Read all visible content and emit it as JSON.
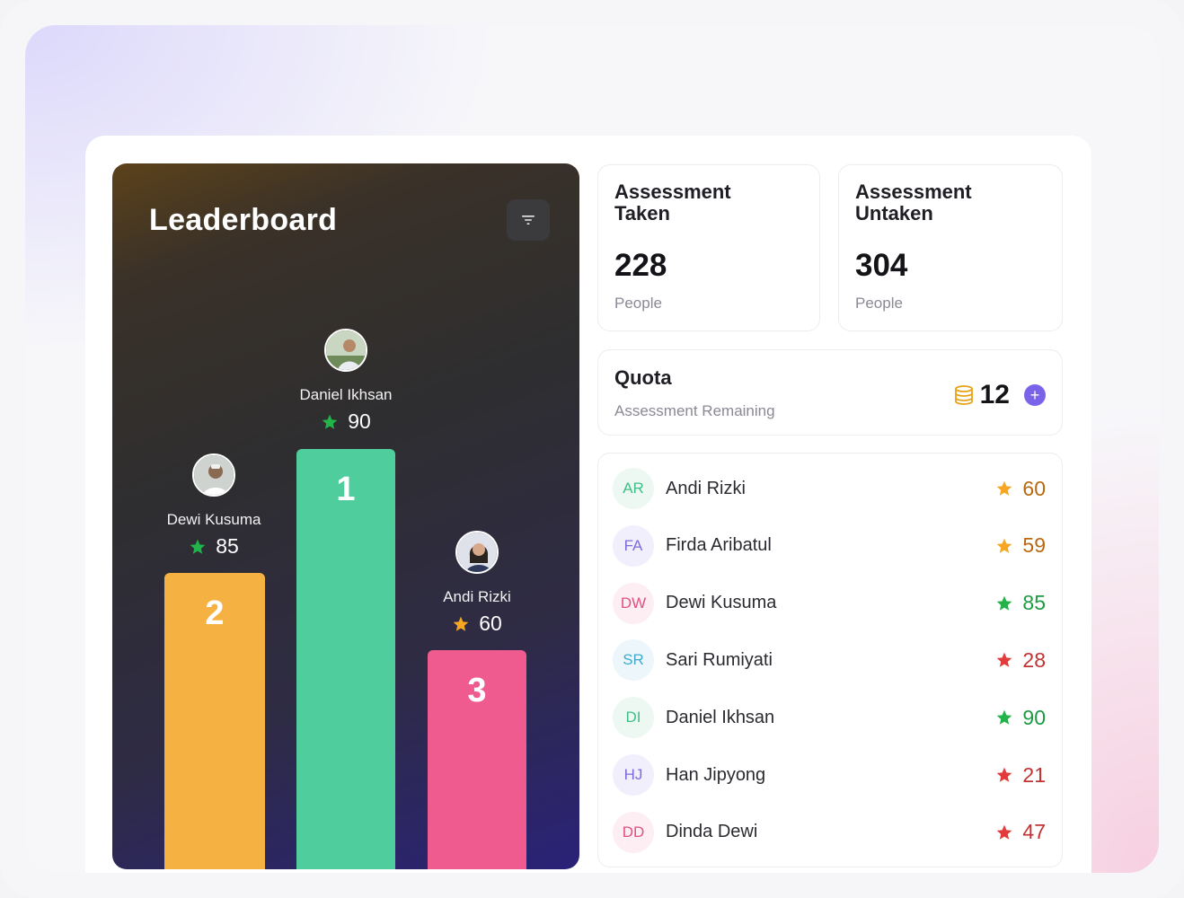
{
  "leaderboard": {
    "title": "Leaderboard",
    "podium": [
      {
        "rank": "2",
        "name": "Dewi Kusuma",
        "score": "85",
        "bar_color": "#f5b142",
        "star_color": "#22b34a"
      },
      {
        "rank": "1",
        "name": "Daniel Ikhsan",
        "score": "90",
        "bar_color": "#50cd9d",
        "star_color": "#22b34a"
      },
      {
        "rank": "3",
        "name": "Andi Rizki",
        "score": "60",
        "bar_color": "#ef5b8e",
        "star_color": "#f5a623"
      }
    ]
  },
  "stats": {
    "taken": {
      "title": "Assessment Taken",
      "value": "228",
      "unit": "People"
    },
    "untaken": {
      "title": "Assessment Untaken",
      "value": "304",
      "unit": "People"
    }
  },
  "quota": {
    "title": "Quota",
    "subtitle": "Assessment Remaining",
    "value": "12",
    "plus_label": "+",
    "coin_color": "#e8a317",
    "accent": "#7a63e8"
  },
  "ranking": [
    {
      "initials": "AR",
      "name": "Andi Rizki",
      "score": "60",
      "star_color": "#f5a623",
      "score_color": "#b8690f",
      "badge_bg": "#eef8f3",
      "badge_fg": "#3fbf88"
    },
    {
      "initials": "FA",
      "name": "Firda Aribatul",
      "score": "59",
      "star_color": "#f5a623",
      "score_color": "#b8690f",
      "badge_bg": "#f1effb",
      "badge_fg": "#7d6bd8"
    },
    {
      "initials": "DW",
      "name": "Dewi Kusuma",
      "score": "85",
      "star_color": "#22b34a",
      "score_color": "#1d9a42",
      "badge_bg": "#fdeef3",
      "badge_fg": "#e0517f"
    },
    {
      "initials": "SR",
      "name": "Sari Rumiyati",
      "score": "28",
      "star_color": "#e23b3b",
      "score_color": "#c23232",
      "badge_bg": "#edf7fb",
      "badge_fg": "#3fa9cf"
    },
    {
      "initials": "DI",
      "name": "Daniel Ikhsan",
      "score": "90",
      "star_color": "#22b34a",
      "score_color": "#1d9a42",
      "badge_bg": "#eef8f3",
      "badge_fg": "#3fbf88"
    },
    {
      "initials": "HJ",
      "name": "Han Jipyong",
      "score": "21",
      "star_color": "#e23b3b",
      "score_color": "#c23232",
      "badge_bg": "#f1effb",
      "badge_fg": "#7d6bd8"
    },
    {
      "initials": "DD",
      "name": "Dinda Dewi",
      "score": "47",
      "star_color": "#e23b3b",
      "score_color": "#c23232",
      "badge_bg": "#fdeef3",
      "badge_fg": "#e0517f"
    }
  ]
}
